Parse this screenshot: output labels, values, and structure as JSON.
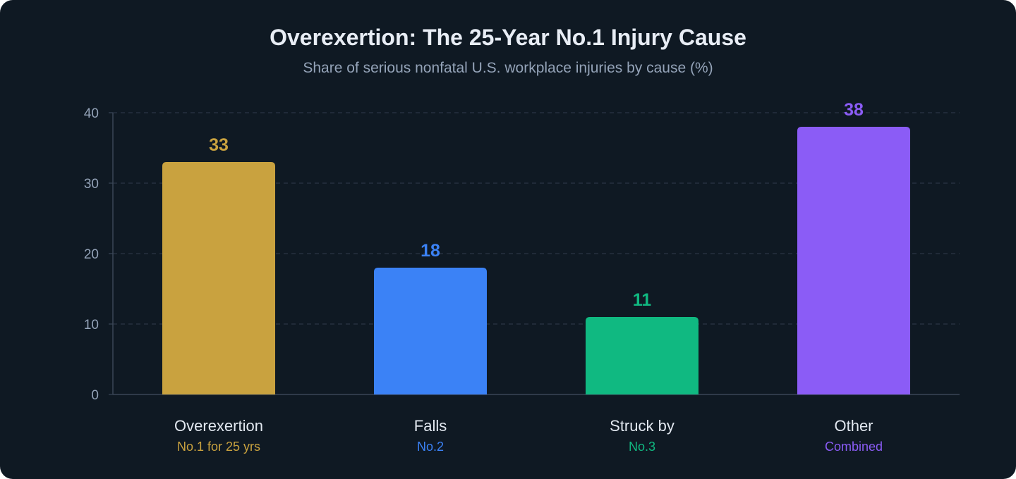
{
  "chart_data": {
    "type": "bar",
    "title": "Overexertion: The 25-Year No.1 Injury Cause",
    "subtitle": "Share of serious nonfatal U.S. workplace injuries by cause (%)",
    "categories": [
      "Overexertion",
      "Falls",
      "Struck by",
      "Other"
    ],
    "notes": [
      "No.1 for 25 yrs",
      "No.2",
      "No.3",
      "Combined"
    ],
    "values": [
      33,
      18,
      11,
      38
    ],
    "colors": [
      "#c9a23f",
      "#3b82f6",
      "#10b981",
      "#8b5cf6"
    ],
    "ylim": [
      0,
      40
    ],
    "yticks": [
      0,
      10,
      20,
      30,
      40
    ],
    "grid": true,
    "xlabel": "",
    "ylabel": ""
  }
}
